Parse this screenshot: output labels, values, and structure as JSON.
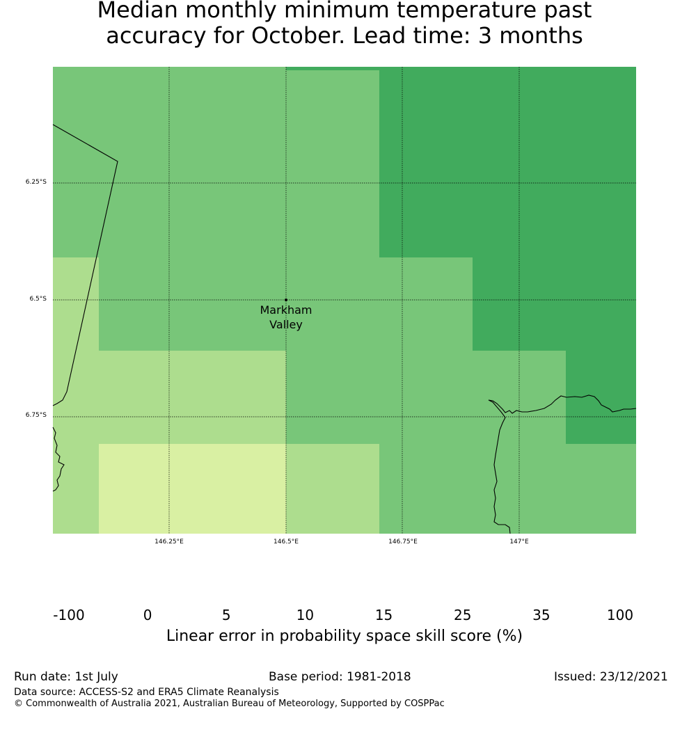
{
  "title": {
    "line1": "Median monthly minimum temperature past",
    "line2": "accuracy for October. Lead time: 3 months"
  },
  "map": {
    "lat_labels": [
      "6.25°S",
      "6.5°S",
      "6.75°S"
    ],
    "lon_labels": [
      "146.25°E",
      "146.5°E",
      "146.75°E",
      "147°E"
    ],
    "place": {
      "name_line1": "Markham",
      "name_line2": "Valley"
    }
  },
  "colorbar": {
    "ticks": [
      "-100",
      "0",
      "5",
      "10",
      "15",
      "25",
      "35",
      "100"
    ],
    "colors": [
      "#ffffff",
      "#ffffcc",
      "#d9f0a3",
      "#addd8e",
      "#78c679",
      "#41ab5d",
      "#238443"
    ],
    "label": "Linear error in probability space skill score (%)"
  },
  "footer": {
    "run_date": "Run date: 1st July",
    "base_period": "Base period: 1981-2018",
    "issued": "Issued: 23/12/2021",
    "data_source": "Data source: ACCESS-S2 and ERA5 Climate Reanalysis",
    "copyright": "© Commonwealth of Australia 2021, Australian Bureau of Meteorology, Supported by COSPPac"
  }
}
